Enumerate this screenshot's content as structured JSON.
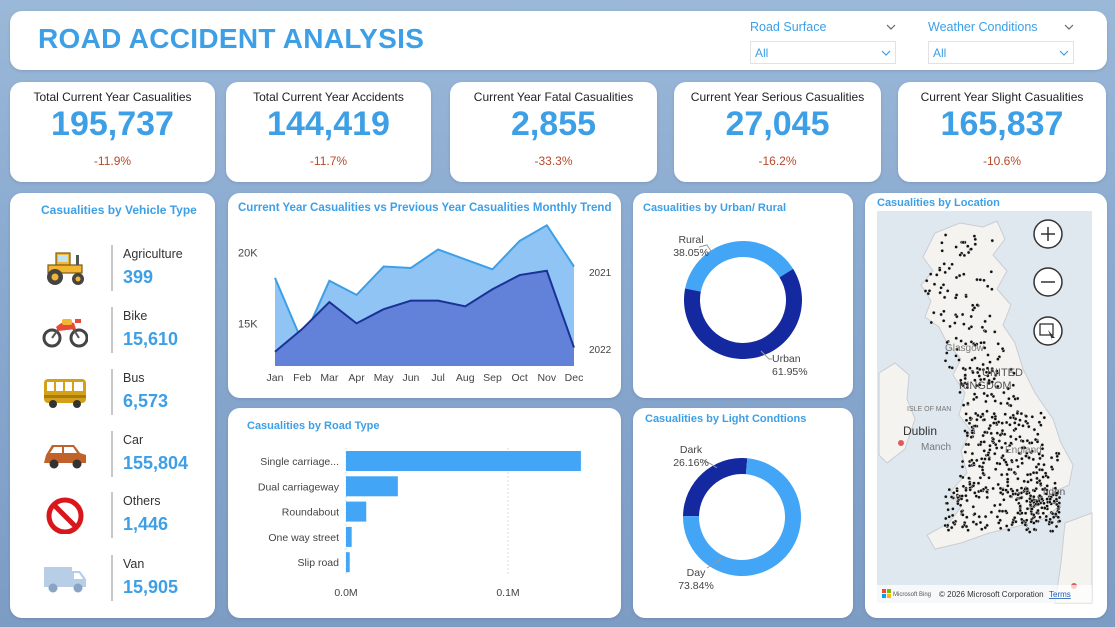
{
  "header": {
    "title": "ROAD ACCIDENT ANALYSIS",
    "filters": [
      {
        "label": "Road Surface",
        "value": "All"
      },
      {
        "label": "Weather Conditions",
        "value": "All"
      }
    ]
  },
  "kpis": [
    {
      "title": "Total Current Year Casualities",
      "value": "195,737",
      "delta": "-11.9%"
    },
    {
      "title": "Total Current Year Accidents",
      "value": "144,419",
      "delta": "-11.7%"
    },
    {
      "title": "Current Year Fatal Casualities",
      "value": "2,855",
      "delta": "-33.3%"
    },
    {
      "title": "Current Year Serious Casualities",
      "value": "27,045",
      "delta": "-16.2%"
    },
    {
      "title": "Current Year Slight Casualities",
      "value": "165,837",
      "delta": "-10.6%"
    }
  ],
  "vehicle": {
    "title": "Casualities by Vehicle Type",
    "items": [
      {
        "label": "Agriculture",
        "value": "399",
        "icon": "tractor-icon"
      },
      {
        "label": "Bike",
        "value": "15,610",
        "icon": "motorbike-icon"
      },
      {
        "label": "Bus",
        "value": "6,573",
        "icon": "bus-icon"
      },
      {
        "label": "Car",
        "value": "155,804",
        "icon": "car-icon"
      },
      {
        "label": "Others",
        "value": "1,446",
        "icon": "no-entry-icon"
      },
      {
        "label": "Van",
        "value": "15,905",
        "icon": "van-icon"
      }
    ]
  },
  "chart_data": [
    {
      "type": "area",
      "title": "Current Year Casualities vs Previous Year Casualities Monthly Trend",
      "categories": [
        "Jan",
        "Feb",
        "Mar",
        "Apr",
        "May",
        "Jun",
        "Jul",
        "Aug",
        "Sep",
        "Oct",
        "Nov",
        "Dec"
      ],
      "y_ticks": [
        "20K",
        "15K"
      ],
      "ylim": [
        12000,
        21500
      ],
      "series": [
        {
          "name": "2021",
          "color": "#90c4f5",
          "line": "#3d9fe6",
          "values": [
            18200,
            13700,
            18000,
            17000,
            19000,
            18900,
            20200,
            19500,
            18800,
            20800,
            21900,
            19000
          ]
        },
        {
          "name": "2022",
          "color": "#6281d9",
          "line": "#1a3296",
          "values": [
            13000,
            14600,
            16500,
            15000,
            16000,
            16600,
            16600,
            16200,
            17400,
            18400,
            18700,
            13300
          ]
        }
      ]
    },
    {
      "type": "bar",
      "title": "Casualities by Road Type",
      "categories": [
        "Single carriage...",
        "Dual carriageway",
        "Roundabout",
        "One way street",
        "Slip road"
      ],
      "values": [
        145000,
        32000,
        12500,
        3500,
        2300
      ],
      "x_ticks": [
        {
          "v": 0,
          "label": "0.0M"
        },
        {
          "v": 100000,
          "label": "0.1M"
        }
      ],
      "xlim": [
        0,
        150000
      ]
    },
    {
      "type": "pie",
      "title": "Casualities by Urban/ Rural",
      "slices": [
        {
          "label": "Rural",
          "pct": "38.05%",
          "value": 38.05,
          "color": "#42a5f5"
        },
        {
          "label": "Urban",
          "pct": "61.95%",
          "value": 61.95,
          "color": "#1428a0"
        }
      ]
    },
    {
      "type": "pie",
      "title": "Casualities by Light Condtions",
      "slices": [
        {
          "label": "Dark",
          "pct": "26.16%",
          "value": 26.16,
          "color": "#1428a0"
        },
        {
          "label": "Day",
          "pct": "73.84%",
          "value": 73.84,
          "color": "#42a5f5"
        }
      ]
    }
  ],
  "map": {
    "title": "Casualities by Location",
    "labels": {
      "glasgow": "Glasgow",
      "united": "UNITED",
      "kingdom": "KINGDOM",
      "isle": "ISLE OF MAN",
      "dublin": "Dublin",
      "manchester": "Manch",
      "england": "England",
      "london": "ndon"
    },
    "attribution": "© 2026 Microsoft Corporation",
    "terms": "Terms",
    "bing": "Microsoft Bing"
  }
}
